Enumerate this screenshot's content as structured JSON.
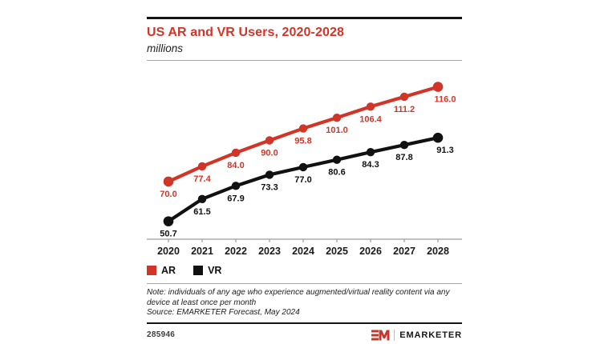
{
  "header": {
    "title": "US AR and VR Users, 2020-2028",
    "subtitle": "millions"
  },
  "chart_data": {
    "type": "line",
    "title": "US AR and VR Users, 2020-2028",
    "xlabel": "",
    "ylabel": "millions",
    "categories": [
      "2020",
      "2021",
      "2022",
      "2023",
      "2024",
      "2025",
      "2026",
      "2027",
      "2028"
    ],
    "series": [
      {
        "name": "AR",
        "color": "#d13527",
        "values": [
          70.0,
          77.4,
          84.0,
          90.0,
          95.8,
          101.0,
          106.4,
          111.2,
          116.0
        ]
      },
      {
        "name": "VR",
        "color": "#111111",
        "values": [
          50.7,
          61.5,
          67.9,
          73.3,
          77.0,
          80.6,
          84.3,
          87.8,
          91.3
        ]
      }
    ],
    "ylim": [
      42,
      124
    ],
    "grid": false,
    "value_labels": true,
    "legend_position": "bottom-left"
  },
  "legend": {
    "items": [
      {
        "label": "AR",
        "color": "#d13527"
      },
      {
        "label": "VR",
        "color": "#111111"
      }
    ]
  },
  "footnote": {
    "note": "Note: individuals of any age who experience augmented/virtual reality content via any device at least once per month",
    "source": "Source: EMARKETER Forecast, May 2024"
  },
  "footer": {
    "chart_id": "285946",
    "brand": "EMARKETER",
    "logo_color": "#c5382b"
  }
}
